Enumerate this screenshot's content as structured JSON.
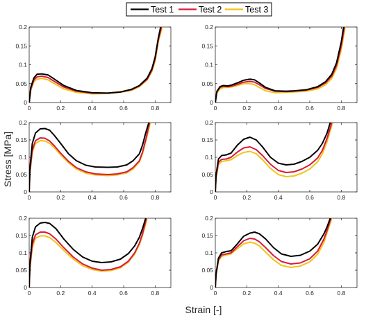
{
  "figure": {
    "xlabel": "Strain [-]",
    "ylabel": "Stress [MPa]"
  },
  "legend": {
    "placement": "top-center",
    "entries": [
      {
        "name": "Test 1",
        "color": "#000000"
      },
      {
        "name": "Test 2",
        "color": "#d81b3c"
      },
      {
        "name": "Test 3",
        "color": "#f0c419"
      }
    ]
  },
  "chart_data": [
    {
      "type": "line",
      "panel": "top-left",
      "xlim": [
        0,
        0.9
      ],
      "ylim": [
        0,
        0.2
      ],
      "xticks": [
        "0",
        "0.2",
        "0.4",
        "0.6",
        "0.8"
      ],
      "yticks": [
        "0",
        "0.05",
        "0.1",
        "0.15",
        "0.2"
      ],
      "grid": false,
      "series": [
        {
          "name": "Test 1",
          "color": "#000000",
          "x": [
            0,
            0.01,
            0.03,
            0.05,
            0.08,
            0.12,
            0.16,
            0.22,
            0.3,
            0.4,
            0.5,
            0.58,
            0.65,
            0.7,
            0.75,
            0.78,
            0.8,
            0.82,
            0.835
          ],
          "y": [
            0,
            0.04,
            0.065,
            0.075,
            0.076,
            0.073,
            0.062,
            0.045,
            0.032,
            0.026,
            0.025,
            0.028,
            0.035,
            0.045,
            0.065,
            0.09,
            0.12,
            0.17,
            0.2
          ]
        },
        {
          "name": "Test 2",
          "color": "#d81b3c",
          "x": [
            0,
            0.01,
            0.03,
            0.05,
            0.08,
            0.12,
            0.16,
            0.22,
            0.3,
            0.4,
            0.5,
            0.58,
            0.65,
            0.7,
            0.75,
            0.78,
            0.8,
            0.82,
            0.84
          ],
          "y": [
            0,
            0.035,
            0.06,
            0.068,
            0.07,
            0.066,
            0.056,
            0.041,
            0.03,
            0.025,
            0.025,
            0.028,
            0.034,
            0.044,
            0.062,
            0.086,
            0.115,
            0.165,
            0.2
          ]
        },
        {
          "name": "Test 3",
          "color": "#f0c419",
          "x": [
            0,
            0.01,
            0.03,
            0.05,
            0.08,
            0.12,
            0.16,
            0.22,
            0.3,
            0.4,
            0.5,
            0.58,
            0.65,
            0.7,
            0.75,
            0.78,
            0.8,
            0.82,
            0.845
          ],
          "y": [
            0,
            0.032,
            0.055,
            0.062,
            0.064,
            0.06,
            0.05,
            0.036,
            0.027,
            0.023,
            0.024,
            0.027,
            0.032,
            0.042,
            0.06,
            0.083,
            0.11,
            0.16,
            0.2
          ]
        }
      ]
    },
    {
      "type": "line",
      "panel": "top-right",
      "xlim": [
        0,
        0.9
      ],
      "ylim": [
        0,
        0.2
      ],
      "xticks": [
        "0",
        "0.2",
        "0.4",
        "0.6",
        "0.8"
      ],
      "yticks": [
        "0",
        "0.05",
        "0.1",
        "0.15",
        "0.2"
      ],
      "grid": false,
      "series": [
        {
          "name": "Test 1",
          "color": "#000000",
          "x": [
            0,
            0.01,
            0.03,
            0.05,
            0.08,
            0.1,
            0.14,
            0.18,
            0.22,
            0.25,
            0.28,
            0.32,
            0.38,
            0.45,
            0.5,
            0.58,
            0.65,
            0.7,
            0.74,
            0.77,
            0.8,
            0.815
          ],
          "y": [
            0,
            0.03,
            0.042,
            0.045,
            0.044,
            0.046,
            0.052,
            0.059,
            0.062,
            0.06,
            0.052,
            0.04,
            0.031,
            0.03,
            0.031,
            0.034,
            0.042,
            0.055,
            0.075,
            0.105,
            0.16,
            0.2
          ]
        },
        {
          "name": "Test 2",
          "color": "#d81b3c",
          "x": [
            0,
            0.01,
            0.03,
            0.05,
            0.08,
            0.1,
            0.14,
            0.18,
            0.22,
            0.25,
            0.28,
            0.32,
            0.38,
            0.45,
            0.5,
            0.58,
            0.65,
            0.7,
            0.74,
            0.77,
            0.8,
            0.82
          ],
          "y": [
            0,
            0.028,
            0.04,
            0.043,
            0.042,
            0.043,
            0.048,
            0.054,
            0.056,
            0.054,
            0.047,
            0.037,
            0.03,
            0.029,
            0.03,
            0.033,
            0.04,
            0.052,
            0.07,
            0.098,
            0.15,
            0.2
          ]
        },
        {
          "name": "Test 3",
          "color": "#f0c419",
          "x": [
            0,
            0.01,
            0.03,
            0.05,
            0.08,
            0.1,
            0.14,
            0.18,
            0.22,
            0.25,
            0.28,
            0.32,
            0.38,
            0.45,
            0.5,
            0.58,
            0.65,
            0.7,
            0.74,
            0.77,
            0.8,
            0.825
          ],
          "y": [
            0,
            0.025,
            0.036,
            0.04,
            0.04,
            0.041,
            0.045,
            0.05,
            0.05,
            0.047,
            0.04,
            0.031,
            0.026,
            0.027,
            0.028,
            0.03,
            0.036,
            0.047,
            0.064,
            0.09,
            0.14,
            0.2
          ]
        }
      ]
    },
    {
      "type": "line",
      "panel": "middle-left",
      "xlim": [
        0,
        0.9
      ],
      "ylim": [
        0,
        0.2
      ],
      "xticks": [
        "0",
        "0.2",
        "0.4",
        "0.6",
        "0.8"
      ],
      "yticks": [
        "0",
        "0.05",
        "0.1",
        "0.15",
        "0.2"
      ],
      "grid": false,
      "series": [
        {
          "name": "Test 1",
          "color": "#000000",
          "x": [
            0,
            0.005,
            0.02,
            0.04,
            0.07,
            0.1,
            0.13,
            0.16,
            0.2,
            0.25,
            0.3,
            0.36,
            0.42,
            0.5,
            0.56,
            0.62,
            0.66,
            0.7,
            0.72,
            0.74,
            0.76
          ],
          "y": [
            0,
            0.07,
            0.14,
            0.17,
            0.182,
            0.183,
            0.178,
            0.163,
            0.14,
            0.11,
            0.09,
            0.077,
            0.072,
            0.071,
            0.072,
            0.078,
            0.09,
            0.11,
            0.135,
            0.17,
            0.2
          ]
        },
        {
          "name": "Test 2",
          "color": "#d81b3c",
          "x": [
            0,
            0.005,
            0.02,
            0.04,
            0.07,
            0.1,
            0.13,
            0.16,
            0.2,
            0.25,
            0.3,
            0.36,
            0.42,
            0.5,
            0.56,
            0.62,
            0.66,
            0.7,
            0.72,
            0.74,
            0.765
          ],
          "y": [
            0,
            0.06,
            0.12,
            0.148,
            0.156,
            0.155,
            0.147,
            0.133,
            0.112,
            0.088,
            0.07,
            0.058,
            0.052,
            0.05,
            0.052,
            0.058,
            0.07,
            0.09,
            0.115,
            0.15,
            0.2
          ]
        },
        {
          "name": "Test 3",
          "color": "#f0c419",
          "x": [
            0,
            0.005,
            0.02,
            0.04,
            0.07,
            0.1,
            0.13,
            0.16,
            0.2,
            0.25,
            0.3,
            0.36,
            0.42,
            0.5,
            0.56,
            0.62,
            0.66,
            0.7,
            0.72,
            0.74,
            0.77
          ],
          "y": [
            0,
            0.055,
            0.115,
            0.14,
            0.148,
            0.147,
            0.14,
            0.127,
            0.107,
            0.084,
            0.066,
            0.054,
            0.049,
            0.047,
            0.049,
            0.055,
            0.066,
            0.086,
            0.11,
            0.145,
            0.2
          ]
        }
      ]
    },
    {
      "type": "line",
      "panel": "middle-right",
      "xlim": [
        0,
        0.9
      ],
      "ylim": [
        0,
        0.2
      ],
      "xticks": [
        "0",
        "0.2",
        "0.4",
        "0.6",
        "0.8"
      ],
      "yticks": [
        "0",
        "0.05",
        "0.1",
        "0.15",
        "0.2"
      ],
      "grid": false,
      "series": [
        {
          "name": "Test 1",
          "color": "#000000",
          "x": [
            0,
            0.005,
            0.02,
            0.04,
            0.07,
            0.1,
            0.14,
            0.18,
            0.22,
            0.26,
            0.3,
            0.35,
            0.4,
            0.45,
            0.5,
            0.55,
            0.6,
            0.65,
            0.68,
            0.71,
            0.73
          ],
          "y": [
            0,
            0.05,
            0.095,
            0.105,
            0.107,
            0.112,
            0.135,
            0.152,
            0.158,
            0.15,
            0.13,
            0.1,
            0.083,
            0.078,
            0.08,
            0.088,
            0.1,
            0.12,
            0.14,
            0.17,
            0.2
          ]
        },
        {
          "name": "Test 2",
          "color": "#d81b3c",
          "x": [
            0,
            0.005,
            0.02,
            0.04,
            0.07,
            0.1,
            0.14,
            0.18,
            0.22,
            0.26,
            0.3,
            0.35,
            0.4,
            0.45,
            0.5,
            0.55,
            0.6,
            0.65,
            0.68,
            0.71,
            0.74
          ],
          "y": [
            0,
            0.045,
            0.085,
            0.094,
            0.095,
            0.1,
            0.115,
            0.127,
            0.13,
            0.122,
            0.105,
            0.08,
            0.062,
            0.056,
            0.058,
            0.066,
            0.078,
            0.098,
            0.12,
            0.155,
            0.2
          ]
        },
        {
          "name": "Test 3",
          "color": "#f0c419",
          "x": [
            0,
            0.005,
            0.02,
            0.04,
            0.07,
            0.1,
            0.14,
            0.18,
            0.22,
            0.26,
            0.3,
            0.35,
            0.4,
            0.45,
            0.5,
            0.55,
            0.6,
            0.65,
            0.68,
            0.71,
            0.745
          ],
          "y": [
            0,
            0.04,
            0.078,
            0.088,
            0.09,
            0.093,
            0.105,
            0.114,
            0.117,
            0.11,
            0.093,
            0.068,
            0.05,
            0.044,
            0.046,
            0.054,
            0.066,
            0.087,
            0.11,
            0.145,
            0.2
          ]
        }
      ]
    },
    {
      "type": "line",
      "panel": "bottom-left",
      "xlim": [
        0,
        0.9
      ],
      "ylim": [
        0,
        0.2
      ],
      "xticks": [
        "0",
        "0.2",
        "0.4",
        "0.6",
        "0.8"
      ],
      "yticks": [
        "0",
        "0.05",
        "0.1",
        "0.15",
        "0.2"
      ],
      "grid": false,
      "series": [
        {
          "name": "Test 1",
          "color": "#000000",
          "x": [
            0,
            0.005,
            0.02,
            0.04,
            0.07,
            0.1,
            0.13,
            0.17,
            0.22,
            0.28,
            0.34,
            0.4,
            0.46,
            0.52,
            0.58,
            0.63,
            0.67,
            0.7,
            0.72,
            0.74
          ],
          "y": [
            0,
            0.07,
            0.145,
            0.175,
            0.186,
            0.188,
            0.185,
            0.17,
            0.14,
            0.11,
            0.088,
            0.076,
            0.072,
            0.074,
            0.082,
            0.098,
            0.12,
            0.145,
            0.17,
            0.2
          ]
        },
        {
          "name": "Test 2",
          "color": "#d81b3c",
          "x": [
            0,
            0.005,
            0.02,
            0.04,
            0.07,
            0.1,
            0.13,
            0.17,
            0.22,
            0.28,
            0.34,
            0.4,
            0.46,
            0.52,
            0.58,
            0.63,
            0.67,
            0.7,
            0.72,
            0.745
          ],
          "y": [
            0,
            0.06,
            0.125,
            0.152,
            0.16,
            0.16,
            0.155,
            0.14,
            0.115,
            0.088,
            0.068,
            0.056,
            0.05,
            0.052,
            0.06,
            0.076,
            0.1,
            0.128,
            0.155,
            0.2
          ]
        },
        {
          "name": "Test 3",
          "color": "#f0c419",
          "x": [
            0,
            0.005,
            0.02,
            0.04,
            0.07,
            0.1,
            0.13,
            0.17,
            0.22,
            0.28,
            0.34,
            0.4,
            0.46,
            0.52,
            0.58,
            0.63,
            0.67,
            0.7,
            0.72,
            0.75
          ],
          "y": [
            0,
            0.055,
            0.115,
            0.142,
            0.149,
            0.149,
            0.144,
            0.13,
            0.107,
            0.082,
            0.063,
            0.052,
            0.047,
            0.049,
            0.057,
            0.073,
            0.096,
            0.124,
            0.15,
            0.2
          ]
        }
      ]
    },
    {
      "type": "line",
      "panel": "bottom-right",
      "xlim": [
        0,
        0.9
      ],
      "ylim": [
        0,
        0.2
      ],
      "xticks": [
        "0",
        "0.2",
        "0.4",
        "0.6",
        "0.8"
      ],
      "yticks": [
        "0",
        "0.05",
        "0.1",
        "0.15",
        "0.2"
      ],
      "grid": false,
      "series": [
        {
          "name": "Test 1",
          "color": "#000000",
          "x": [
            0,
            0.005,
            0.02,
            0.04,
            0.07,
            0.1,
            0.14,
            0.18,
            0.22,
            0.25,
            0.28,
            0.32,
            0.37,
            0.42,
            0.48,
            0.54,
            0.6,
            0.65,
            0.69,
            0.71,
            0.73
          ],
          "y": [
            0,
            0.04,
            0.085,
            0.1,
            0.104,
            0.106,
            0.126,
            0.148,
            0.157,
            0.16,
            0.155,
            0.14,
            0.115,
            0.097,
            0.09,
            0.093,
            0.105,
            0.125,
            0.155,
            0.175,
            0.2
          ]
        },
        {
          "name": "Test 2",
          "color": "#d81b3c",
          "x": [
            0,
            0.005,
            0.02,
            0.04,
            0.07,
            0.1,
            0.14,
            0.18,
            0.22,
            0.25,
            0.28,
            0.32,
            0.37,
            0.42,
            0.48,
            0.54,
            0.6,
            0.65,
            0.69,
            0.71,
            0.735
          ],
          "y": [
            0,
            0.038,
            0.08,
            0.094,
            0.097,
            0.1,
            0.118,
            0.135,
            0.142,
            0.14,
            0.132,
            0.115,
            0.092,
            0.075,
            0.068,
            0.071,
            0.083,
            0.105,
            0.14,
            0.165,
            0.2
          ]
        },
        {
          "name": "Test 3",
          "color": "#f0c419",
          "x": [
            0,
            0.005,
            0.02,
            0.04,
            0.07,
            0.1,
            0.14,
            0.18,
            0.22,
            0.25,
            0.28,
            0.32,
            0.37,
            0.42,
            0.48,
            0.54,
            0.6,
            0.65,
            0.69,
            0.71,
            0.74
          ],
          "y": [
            0,
            0.036,
            0.077,
            0.09,
            0.094,
            0.097,
            0.112,
            0.126,
            0.131,
            0.128,
            0.12,
            0.102,
            0.08,
            0.064,
            0.058,
            0.062,
            0.074,
            0.096,
            0.13,
            0.158,
            0.2
          ]
        }
      ]
    }
  ]
}
